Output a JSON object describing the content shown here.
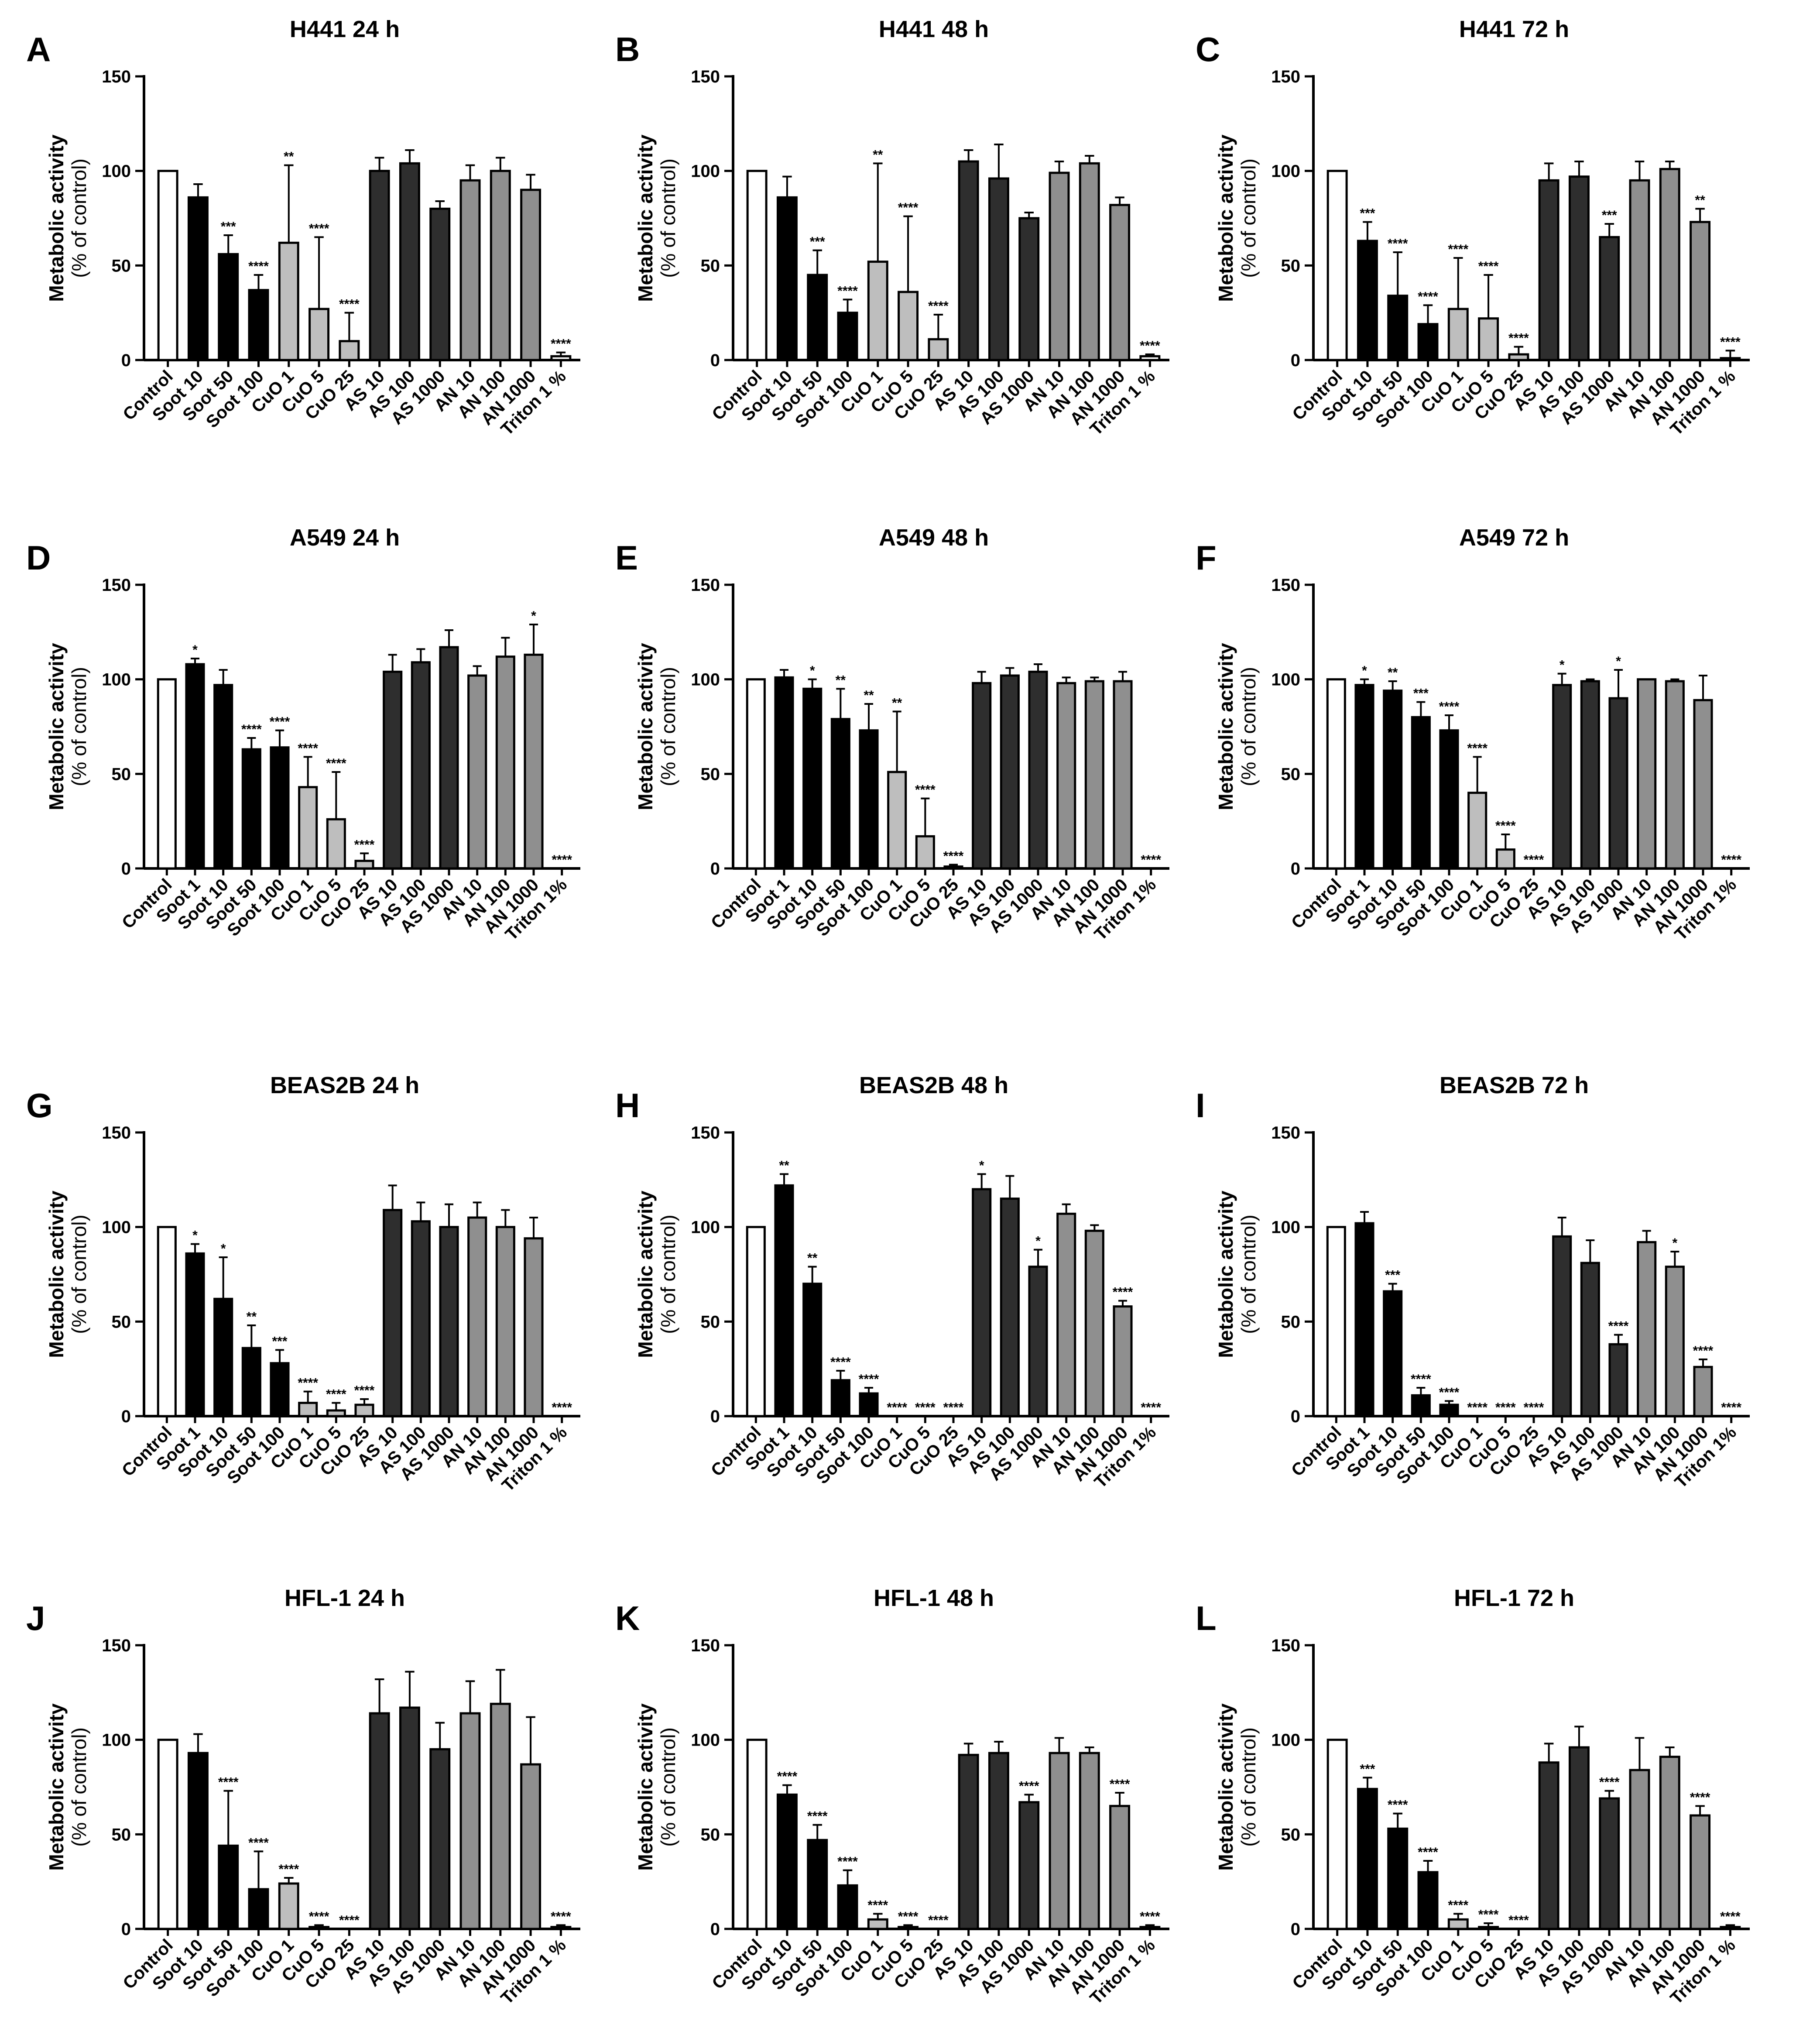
{
  "colors": {
    "control": "#ffffff",
    "soot": "#000000",
    "cuo": "#bebebe",
    "as": "#2e2e2e",
    "an": "#8f8f8f",
    "triton": "#ffffff"
  },
  "ylabel": "Metabolic activity",
  "ylabel_sub": "(% of control)",
  "chart_data": [
    {
      "panel": "A",
      "title": "H441 24 h",
      "type": "bar",
      "ylim": [
        0,
        150
      ],
      "yticks": [
        0,
        50,
        100,
        150
      ],
      "categories": [
        "Control",
        "Soot 10",
        "Soot 50",
        "Soot 100",
        "CuO 1",
        "CuO 5",
        "CuO 25",
        "AS 10",
        "AS 100",
        "AS 1000",
        "AN 10",
        "AN 100",
        "AN 1000",
        "Triton 1 %"
      ],
      "groups": [
        "control",
        "soot",
        "soot",
        "soot",
        "cuo",
        "cuo",
        "cuo",
        "as",
        "as",
        "as",
        "an",
        "an",
        "an",
        "triton"
      ],
      "values": [
        100,
        86,
        56,
        37,
        62,
        27,
        10,
        100,
        104,
        80,
        95,
        100,
        90,
        2
      ],
      "errors": [
        0,
        7,
        10,
        8,
        41,
        38,
        15,
        7,
        7,
        4,
        8,
        7,
        8,
        2
      ],
      "significance": [
        "",
        "",
        "***",
        "****",
        "**",
        "****",
        "****",
        "",
        "",
        "",
        "",
        "",
        "",
        "****"
      ]
    },
    {
      "panel": "B",
      "title": "H441 48 h",
      "type": "bar",
      "ylim": [
        0,
        150
      ],
      "yticks": [
        0,
        50,
        100,
        150
      ],
      "categories": [
        "Control",
        "Soot 10",
        "Soot 50",
        "Soot 100",
        "CuO 1",
        "CuO 5",
        "CuO 25",
        "AS 10",
        "AS 100",
        "AS 1000",
        "AN 10",
        "AN 100",
        "AN 1000",
        "Triton 1 %"
      ],
      "groups": [
        "control",
        "soot",
        "soot",
        "soot",
        "cuo",
        "cuo",
        "cuo",
        "as",
        "as",
        "as",
        "an",
        "an",
        "an",
        "triton"
      ],
      "values": [
        100,
        86,
        45,
        25,
        52,
        36,
        11,
        105,
        96,
        75,
        99,
        104,
        82,
        2
      ],
      "errors": [
        0,
        11,
        13,
        7,
        52,
        40,
        13,
        6,
        18,
        3,
        6,
        4,
        4,
        1
      ],
      "significance": [
        "",
        "",
        "***",
        "****",
        "**",
        "****",
        "****",
        "",
        "",
        "",
        "",
        "",
        "",
        "****"
      ]
    },
    {
      "panel": "C",
      "title": "H441 72 h",
      "type": "bar",
      "ylim": [
        0,
        150
      ],
      "yticks": [
        0,
        50,
        100,
        150
      ],
      "categories": [
        "Control",
        "Soot 10",
        "Soot 50",
        "Soot 100",
        "CuO 1",
        "CuO 5",
        "CuO 25",
        "AS 10",
        "AS 100",
        "AS 1000",
        "AN 10",
        "AN 100",
        "AN 1000",
        "Triton 1 %"
      ],
      "groups": [
        "control",
        "soot",
        "soot",
        "soot",
        "cuo",
        "cuo",
        "cuo",
        "as",
        "as",
        "as",
        "an",
        "an",
        "an",
        "triton"
      ],
      "values": [
        100,
        63,
        34,
        19,
        27,
        22,
        3,
        95,
        97,
        65,
        95,
        101,
        73,
        1
      ],
      "errors": [
        0,
        10,
        23,
        10,
        27,
        23,
        4,
        9,
        8,
        7,
        10,
        4,
        7,
        4
      ],
      "significance": [
        "",
        "***",
        "****",
        "****",
        "****",
        "****",
        "****",
        "",
        "",
        "***",
        "",
        "",
        "**",
        "****"
      ]
    },
    {
      "panel": "D",
      "title": "A549 24 h",
      "type": "bar",
      "ylim": [
        0,
        150
      ],
      "yticks": [
        0,
        50,
        100,
        150
      ],
      "categories": [
        "Control",
        "Soot 1",
        "Soot 10",
        "Soot 50",
        "Soot 100",
        "CuO 1",
        "CuO 5",
        "CuO 25",
        "AS 10",
        "AS 100",
        "AS 1000",
        "AN 10",
        "AN 100",
        "AN 1000",
        "Triton 1%"
      ],
      "groups": [
        "control",
        "soot",
        "soot",
        "soot",
        "soot",
        "cuo",
        "cuo",
        "cuo",
        "as",
        "as",
        "as",
        "an",
        "an",
        "an",
        "triton"
      ],
      "values": [
        100,
        108,
        97,
        63,
        64,
        43,
        26,
        4,
        104,
        109,
        117,
        102,
        112,
        113,
        0
      ],
      "errors": [
        0,
        3,
        8,
        6,
        9,
        16,
        25,
        4,
        9,
        7,
        9,
        5,
        10,
        16,
        0
      ],
      "significance": [
        "",
        "*",
        "",
        "****",
        "****",
        "****",
        "****",
        "****",
        "",
        "",
        "",
        "",
        "",
        "*",
        "****"
      ]
    },
    {
      "panel": "E",
      "title": "A549 48 h",
      "type": "bar",
      "ylim": [
        0,
        150
      ],
      "yticks": [
        0,
        50,
        100,
        150
      ],
      "categories": [
        "Control",
        "Soot 1",
        "Soot 10",
        "Soot 50",
        "Soot 100",
        "CuO 1",
        "CuO 5",
        "CuO 25",
        "AS 10",
        "AS 100",
        "AS 1000",
        "AN 10",
        "AN 100",
        "AN 1000",
        "Triton 1%"
      ],
      "groups": [
        "control",
        "soot",
        "soot",
        "soot",
        "soot",
        "cuo",
        "cuo",
        "cuo",
        "as",
        "as",
        "as",
        "an",
        "an",
        "an",
        "triton"
      ],
      "values": [
        100,
        101,
        95,
        79,
        73,
        51,
        17,
        1,
        98,
        102,
        104,
        98,
        99,
        99,
        0
      ],
      "errors": [
        0,
        4,
        5,
        16,
        14,
        32,
        20,
        1,
        6,
        4,
        4,
        3,
        2,
        5,
        0
      ],
      "significance": [
        "",
        "",
        "*",
        "**",
        "**",
        "**",
        "****",
        "****",
        "",
        "",
        "",
        "",
        "",
        "",
        "****"
      ]
    },
    {
      "panel": "F",
      "title": "A549 72 h",
      "type": "bar",
      "ylim": [
        0,
        150
      ],
      "yticks": [
        0,
        50,
        100,
        150
      ],
      "categories": [
        "Control",
        "Soot 1",
        "Soot 10",
        "Soot 50",
        "Soot 100",
        "CuO 1",
        "CuO 5",
        "CuO 25",
        "AS 10",
        "AS 100",
        "AS 1000",
        "AN 10",
        "AN 100",
        "AN 1000",
        "Triton 1%"
      ],
      "groups": [
        "control",
        "soot",
        "soot",
        "soot",
        "soot",
        "cuo",
        "cuo",
        "cuo",
        "as",
        "as",
        "as",
        "an",
        "an",
        "an",
        "triton"
      ],
      "values": [
        100,
        97,
        94,
        80,
        73,
        40,
        10,
        0,
        97,
        99,
        90,
        100,
        99,
        89,
        0
      ],
      "errors": [
        0,
        3,
        5,
        8,
        8,
        19,
        8,
        0,
        6,
        1,
        15,
        0,
        1,
        13,
        0
      ],
      "significance": [
        "",
        "*",
        "**",
        "***",
        "****",
        "****",
        "****",
        "****",
        "*",
        "",
        "*",
        "",
        "",
        "",
        "****"
      ]
    },
    {
      "panel": "G",
      "title": "BEAS2B 24 h",
      "type": "bar",
      "ylim": [
        0,
        150
      ],
      "yticks": [
        0,
        50,
        100,
        150
      ],
      "categories": [
        "Control",
        "Soot 1",
        "Soot 10",
        "Soot 50",
        "Soot 100",
        "CuO 1",
        "CuO 5",
        "CuO 25",
        "AS 10",
        "AS 100",
        "AS 1000",
        "AN 10",
        "AN 100",
        "AN 1000",
        "Triton 1 %"
      ],
      "groups": [
        "control",
        "soot",
        "soot",
        "soot",
        "soot",
        "cuo",
        "cuo",
        "cuo",
        "as",
        "as",
        "as",
        "an",
        "an",
        "an",
        "triton"
      ],
      "values": [
        100,
        86,
        62,
        36,
        28,
        7,
        3,
        6,
        109,
        103,
        100,
        105,
        100,
        94,
        0
      ],
      "errors": [
        0,
        5,
        22,
        12,
        7,
        6,
        4,
        3,
        13,
        10,
        12,
        8,
        9,
        11,
        0
      ],
      "significance": [
        "",
        "*",
        "*",
        "**",
        "***",
        "****",
        "****",
        "****",
        "",
        "",
        "",
        "",
        "",
        "",
        "****"
      ]
    },
    {
      "panel": "H",
      "title": "BEAS2B 48 h",
      "type": "bar",
      "ylim": [
        0,
        150
      ],
      "yticks": [
        0,
        50,
        100,
        150
      ],
      "categories": [
        "Control",
        "Soot 1",
        "Soot 10",
        "Soot 50",
        "Soot 100",
        "CuO 1",
        "CuO 5",
        "CuO 25",
        "AS 10",
        "AS 100",
        "AS 1000",
        "AN 10",
        "AN 100",
        "AN 1000",
        "Triton 1%"
      ],
      "groups": [
        "control",
        "soot",
        "soot",
        "soot",
        "soot",
        "cuo",
        "cuo",
        "cuo",
        "as",
        "as",
        "as",
        "an",
        "an",
        "an",
        "triton"
      ],
      "values": [
        100,
        122,
        70,
        19,
        12,
        0,
        0,
        0,
        120,
        115,
        79,
        107,
        98,
        58,
        0
      ],
      "errors": [
        0,
        6,
        9,
        5,
        3,
        0,
        0,
        0,
        8,
        12,
        9,
        5,
        3,
        3,
        0
      ],
      "significance": [
        "",
        "**",
        "**",
        "****",
        "****",
        "****",
        "****",
        "****",
        "*",
        "",
        "*",
        "",
        "",
        "****",
        "****"
      ]
    },
    {
      "panel": "I",
      "title": "BEAS2B 72 h",
      "type": "bar",
      "ylim": [
        0,
        150
      ],
      "yticks": [
        0,
        50,
        100,
        150
      ],
      "categories": [
        "Control",
        "Soot 1",
        "Soot 10",
        "Soot 50",
        "Soot 100",
        "CuO 1",
        "CuO 5",
        "CuO 25",
        "AS 10",
        "AS 100",
        "AS 1000",
        "AN 10",
        "AN 100",
        "AN 1000",
        "Triton 1%"
      ],
      "groups": [
        "control",
        "soot",
        "soot",
        "soot",
        "soot",
        "cuo",
        "cuo",
        "cuo",
        "as",
        "as",
        "as",
        "an",
        "an",
        "an",
        "triton"
      ],
      "values": [
        100,
        102,
        66,
        11,
        6,
        0,
        0,
        0,
        95,
        81,
        38,
        92,
        79,
        26,
        0
      ],
      "errors": [
        0,
        6,
        4,
        4,
        2,
        0,
        0,
        0,
        10,
        12,
        5,
        6,
        8,
        4,
        0
      ],
      "significance": [
        "",
        "",
        "***",
        "****",
        "****",
        "****",
        "****",
        "****",
        "",
        "",
        "****",
        "",
        "*",
        "****",
        "****"
      ]
    },
    {
      "panel": "J",
      "title": "HFL-1 24 h",
      "type": "bar",
      "ylim": [
        0,
        150
      ],
      "yticks": [
        0,
        50,
        100,
        150
      ],
      "categories": [
        "Control",
        "Soot 10",
        "Soot 50",
        "Soot 100",
        "CuO 1",
        "CuO 5",
        "CuO 25",
        "AS 10",
        "AS 100",
        "AS 1000",
        "AN 10",
        "AN 100",
        "AN 1000",
        "Triton 1 %"
      ],
      "groups": [
        "control",
        "soot",
        "soot",
        "soot",
        "cuo",
        "cuo",
        "cuo",
        "as",
        "as",
        "as",
        "an",
        "an",
        "an",
        "triton"
      ],
      "values": [
        100,
        93,
        44,
        21,
        24,
        1,
        0,
        114,
        117,
        95,
        114,
        119,
        87,
        1
      ],
      "errors": [
        0,
        10,
        29,
        20,
        3,
        1,
        0,
        18,
        19,
        14,
        17,
        18,
        25,
        1
      ],
      "significance": [
        "",
        "",
        "****",
        "****",
        "****",
        "****",
        "****",
        "",
        "",
        "",
        "",
        "",
        "",
        "****"
      ]
    },
    {
      "panel": "K",
      "title": "HFL-1 48 h",
      "type": "bar",
      "ylim": [
        0,
        150
      ],
      "yticks": [
        0,
        50,
        100,
        150
      ],
      "categories": [
        "Control",
        "Soot 10",
        "Soot 50",
        "Soot 100",
        "CuO 1",
        "CuO 5",
        "CuO 25",
        "AS 10",
        "AS 100",
        "AS 1000",
        "AN 10",
        "AN 100",
        "AN 1000",
        "Triton 1 %"
      ],
      "groups": [
        "control",
        "soot",
        "soot",
        "soot",
        "cuo",
        "cuo",
        "cuo",
        "as",
        "as",
        "as",
        "an",
        "an",
        "an",
        "triton"
      ],
      "values": [
        100,
        71,
        47,
        23,
        5,
        1,
        0,
        92,
        93,
        67,
        93,
        93,
        65,
        1
      ],
      "errors": [
        0,
        5,
        8,
        8,
        3,
        1,
        0,
        6,
        6,
        4,
        8,
        3,
        7,
        1
      ],
      "significance": [
        "",
        "****",
        "****",
        "****",
        "****",
        "****",
        "****",
        "",
        "",
        "****",
        "",
        "",
        "****",
        "****"
      ]
    },
    {
      "panel": "L",
      "title": "HFL-1 72 h",
      "type": "bar",
      "ylim": [
        0,
        150
      ],
      "yticks": [
        0,
        50,
        100,
        150
      ],
      "categories": [
        "Control",
        "Soot 10",
        "Soot 50",
        "Soot 100",
        "CuO 1",
        "CuO 5",
        "CuO 25",
        "AS 10",
        "AS 100",
        "AS 1000",
        "AN 10",
        "AN 100",
        "AN 1000",
        "Triton 1 %"
      ],
      "groups": [
        "control",
        "soot",
        "soot",
        "soot",
        "cuo",
        "cuo",
        "cuo",
        "as",
        "as",
        "as",
        "an",
        "an",
        "an",
        "triton"
      ],
      "values": [
        100,
        74,
        53,
        30,
        5,
        1,
        0,
        88,
        96,
        69,
        84,
        91,
        60,
        1
      ],
      "errors": [
        0,
        6,
        8,
        6,
        3,
        2,
        0,
        10,
        11,
        4,
        17,
        5,
        5,
        1
      ],
      "significance": [
        "",
        "***",
        "****",
        "****",
        "****",
        "****",
        "****",
        "",
        "",
        "****",
        "",
        "",
        "****",
        "****"
      ]
    }
  ]
}
